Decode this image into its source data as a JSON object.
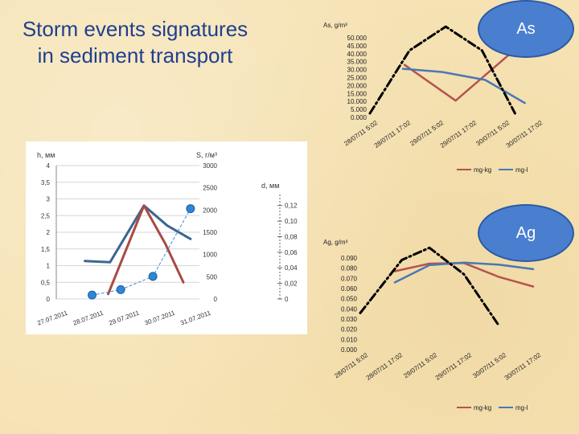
{
  "slide": {
    "title_line1": "Storm events signatures",
    "title_line2": "in sediment transport"
  },
  "badges": {
    "as": "As",
    "ag": "Ag"
  },
  "chart_data": [
    {
      "id": "as",
      "type": "line",
      "ylabel": "As, g/m³",
      "ylim": [
        0,
        50
      ],
      "y_ticks": [
        "0.000",
        "5.000",
        "10.000",
        "15.000",
        "20.000",
        "25.000",
        "30.000",
        "35.000",
        "40.000",
        "45.000",
        "50.000"
      ],
      "categories": [
        "28/07/11 5:02",
        "28/07/11 17:02",
        "29/07/11 5:02",
        "29/07/11 17:02",
        "30/07/11 5:02",
        "30/07/11 17:02"
      ],
      "legend": [
        "mg-kg",
        "mg-l"
      ],
      "series": [
        {
          "name": "mg-kg",
          "color": "#b5524f",
          "points": [
            [
              1.05,
              33
            ],
            [
              2.6,
              10.5
            ],
            [
              4.7,
              48
            ]
          ]
        },
        {
          "name": "mg-l",
          "color": "#4a78b5",
          "points": [
            [
              1.0,
              30.5
            ],
            [
              2.2,
              28.5
            ],
            [
              3.5,
              23.5
            ],
            [
              4.7,
              9
            ]
          ]
        },
        {
          "name": "",
          "color": "#000000",
          "dashed": true,
          "points": [
            [
              0.0,
              2.5
            ],
            [
              1.2,
              42
            ],
            [
              2.3,
              57
            ],
            [
              3.4,
              42
            ],
            [
              4.4,
              2.5
            ]
          ]
        }
      ]
    },
    {
      "id": "ag",
      "type": "line",
      "ylabel": "Ag, g/m³",
      "ylim": [
        0,
        0.09
      ],
      "y_ticks": [
        "0.000",
        "0.010",
        "0.020",
        "0.030",
        "0.040",
        "0.050",
        "0.060",
        "0.070",
        "0.080",
        "0.090"
      ],
      "categories": [
        "28/07/11 5:02",
        "28/07/11 17:02",
        "29/07/11 5:02",
        "29/07/11 17:02",
        "30/07/11 5:02",
        "30/07/11 17:02"
      ],
      "legend": [
        "mg-kg",
        "mg-l"
      ],
      "series": [
        {
          "name": "mg-kg",
          "color": "#b5524f",
          "points": [
            [
              1.0,
              0.077
            ],
            [
              2.0,
              0.0845
            ],
            [
              3.0,
              0.085
            ],
            [
              4.0,
              0.0715
            ],
            [
              5.0,
              0.062
            ]
          ]
        },
        {
          "name": "mg-l",
          "color": "#4a78b5",
          "points": [
            [
              1.0,
              0.066
            ],
            [
              2.0,
              0.083
            ],
            [
              3.0,
              0.0855
            ],
            [
              4.0,
              0.0835
            ],
            [
              5.0,
              0.079
            ]
          ]
        },
        {
          "name": "",
          "color": "#000000",
          "dashed": true,
          "points": [
            [
              0.0,
              0.036
            ],
            [
              1.2,
              0.088
            ],
            [
              2.0,
              0.1
            ],
            [
              3.0,
              0.074
            ],
            [
              4.0,
              0.024
            ]
          ]
        }
      ]
    },
    {
      "id": "photo",
      "type": "line",
      "ylabel_left": "h, мм",
      "ylabel_right": "S, г/м³",
      "ylabel_d": "d, мм",
      "h_ticks": [
        "0",
        "0,5",
        "1",
        "1,5",
        "2",
        "2,5",
        "3",
        "3,5",
        "4"
      ],
      "h_lim": [
        0,
        4
      ],
      "s_ticks": [
        "0",
        "500",
        "1000",
        "1500",
        "2000",
        "2500",
        "3000"
      ],
      "s_lim": [
        0,
        3000
      ],
      "d_ticks": [
        "0",
        "0,02",
        "0,04",
        "0,06",
        "0,08",
        "0,10",
        "0,12"
      ],
      "d_lim": [
        0,
        0.13
      ],
      "x_ticks": [
        "27.07.2011",
        "28.07.2011",
        "29.07.2011",
        "30.07.2011",
        "31.07.2011"
      ],
      "xlim": [
        27,
        31
      ],
      "series": [
        {
          "name": "",
          "color": "#3d6690",
          "axis": "h",
          "points": [
            [
              27.8,
              1.14
            ],
            [
              28.5,
              1.1
            ],
            [
              29.45,
              2.8
            ],
            [
              30.1,
              2.2
            ],
            [
              30.75,
              1.8
            ]
          ]
        },
        {
          "name": "",
          "color": "#a84a44",
          "axis": "h",
          "points": [
            [
              28.45,
              0.15
            ],
            [
              29.45,
              2.8
            ],
            [
              30.05,
              1.65
            ],
            [
              30.55,
              0.5
            ]
          ]
        },
        {
          "name": "",
          "color": "#3f8fd6",
          "axis": "d",
          "dashed": true,
          "markers": true,
          "points": [
            [
              28.0,
              0.005
            ],
            [
              28.8,
              0.012
            ],
            [
              29.7,
              0.029
            ],
            [
              30.75,
              0.116
            ]
          ]
        }
      ]
    }
  ]
}
